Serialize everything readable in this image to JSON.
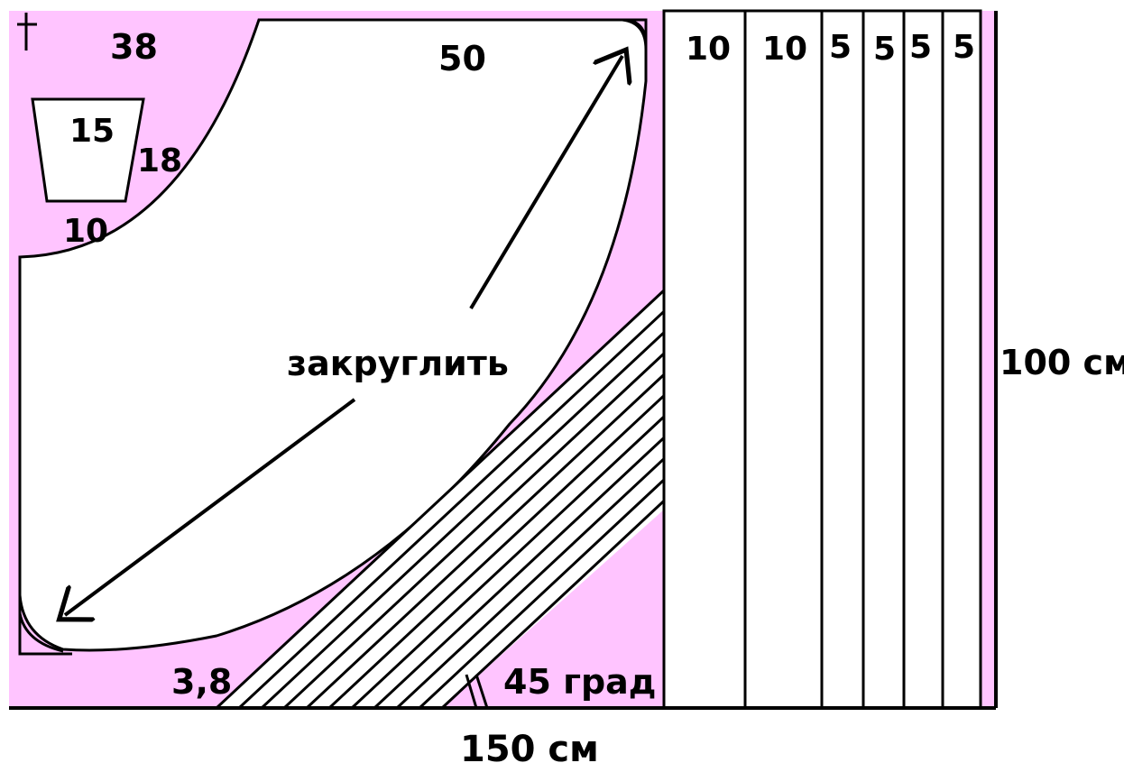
{
  "colors": {
    "fabric": "#ffc4ff",
    "cut": "#ffffff",
    "line": "#000000",
    "background": "#ffffff"
  },
  "icons": {
    "cross_mark": "cross-mark-icon"
  },
  "labels": {
    "corner_38": "38",
    "top_50": "50",
    "pocket_15": "15",
    "pocket_18": "18",
    "pocket_10": "10",
    "round_off": "закруглить",
    "bias_3_8": "3,8",
    "angle_45": "45 град",
    "width_150": "150 см",
    "height_100": "100 см"
  },
  "strips": {
    "widths": [
      "10",
      "10",
      "5",
      "5",
      "5",
      "5"
    ]
  }
}
